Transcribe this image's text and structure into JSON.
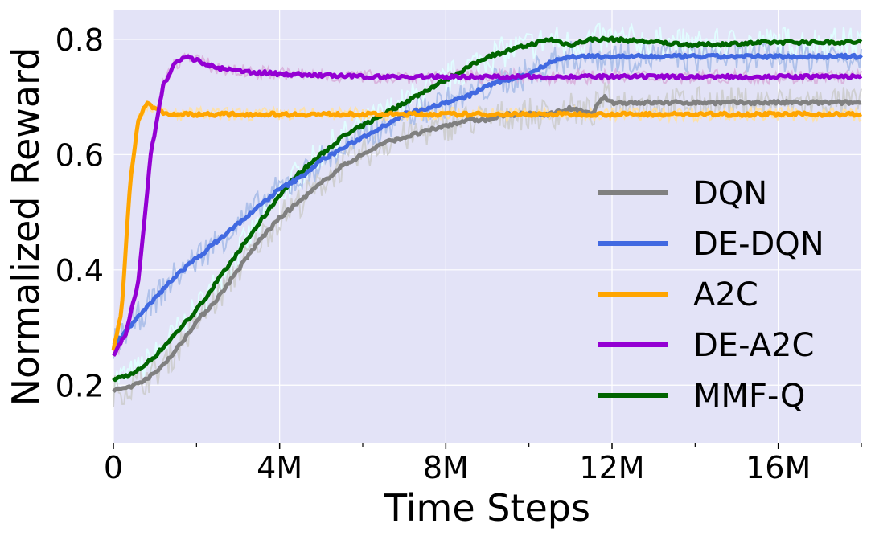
{
  "chart_data": {
    "type": "line",
    "xlabel": "Time Steps",
    "ylabel": "Normalized Reward",
    "xlim": [
      0,
      18000000
    ],
    "ylim": [
      0.1,
      0.85
    ],
    "xticks": [
      0,
      4000000,
      8000000,
      12000000,
      16000000
    ],
    "xtick_labels": [
      "0",
      "4M",
      "8M",
      "12M",
      "16M"
    ],
    "xminor_ticks": [
      2000000,
      6000000,
      10000000,
      14000000,
      18000000
    ],
    "yticks": [
      0.2,
      0.4,
      0.6,
      0.8
    ],
    "ytick_labels": [
      "0.2",
      "0.4",
      "0.6",
      "0.8"
    ],
    "grid": true,
    "background_color": "#e3e3f7",
    "legend_position": "lower-right",
    "series": [
      {
        "name": "DQN",
        "color": "#808080",
        "band_color": "#cccccc",
        "x": [
          0,
          500000,
          1000000,
          1500000,
          2000000,
          2500000,
          3000000,
          3500000,
          4000000,
          4500000,
          5000000,
          5500000,
          6000000,
          6500000,
          7000000,
          7500000,
          8000000,
          8500000,
          9000000,
          9500000,
          10000000,
          10500000,
          11000000,
          11500000,
          11800000,
          12000000,
          14000000,
          16000000,
          18000000
        ],
        "y": [
          0.19,
          0.2,
          0.22,
          0.26,
          0.31,
          0.35,
          0.4,
          0.45,
          0.49,
          0.52,
          0.55,
          0.58,
          0.6,
          0.62,
          0.63,
          0.64,
          0.65,
          0.66,
          0.66,
          0.67,
          0.67,
          0.67,
          0.68,
          0.67,
          0.7,
          0.69,
          0.69,
          0.69,
          0.69
        ]
      },
      {
        "name": "DE-DQN",
        "color": "#4169e1",
        "band_color": "#a8bce8",
        "x": [
          0,
          500000,
          1000000,
          1500000,
          2000000,
          2500000,
          3000000,
          3500000,
          4000000,
          4500000,
          5000000,
          5500000,
          6000000,
          6500000,
          7000000,
          7500000,
          8000000,
          8500000,
          9000000,
          9500000,
          10000000,
          10500000,
          11000000,
          11500000,
          12000000,
          14000000,
          16000000,
          18000000
        ],
        "y": [
          0.27,
          0.31,
          0.35,
          0.39,
          0.42,
          0.45,
          0.48,
          0.51,
          0.54,
          0.56,
          0.59,
          0.61,
          0.63,
          0.65,
          0.67,
          0.68,
          0.69,
          0.7,
          0.72,
          0.73,
          0.74,
          0.76,
          0.77,
          0.77,
          0.77,
          0.77,
          0.77,
          0.77
        ]
      },
      {
        "name": "A2C",
        "color": "#ffa500",
        "band_color": "#ffe0a0",
        "x": [
          0,
          200000,
          400000,
          600000,
          800000,
          1000000,
          1300000,
          2000000,
          4000000,
          6000000,
          8000000,
          10000000,
          12000000,
          14000000,
          16000000,
          18000000
        ],
        "y": [
          0.26,
          0.33,
          0.55,
          0.66,
          0.69,
          0.68,
          0.67,
          0.67,
          0.67,
          0.67,
          0.67,
          0.67,
          0.67,
          0.67,
          0.67,
          0.67
        ]
      },
      {
        "name": "DE-A2C",
        "color": "#9400d3",
        "band_color": "#d8b0dc",
        "x": [
          0,
          300000,
          600000,
          900000,
          1200000,
          1500000,
          1800000,
          2100000,
          2500000,
          3000000,
          4000000,
          6000000,
          8000000,
          10000000,
          12000000,
          14000000,
          16000000,
          18000000
        ],
        "y": [
          0.25,
          0.29,
          0.38,
          0.6,
          0.72,
          0.76,
          0.77,
          0.76,
          0.75,
          0.745,
          0.74,
          0.735,
          0.735,
          0.735,
          0.735,
          0.735,
          0.735,
          0.735
        ]
      },
      {
        "name": "MMF-Q",
        "color": "#006400",
        "band_color": "#e0ffff",
        "x": [
          0,
          500000,
          1000000,
          1500000,
          2000000,
          2500000,
          3000000,
          3500000,
          4000000,
          4500000,
          5000000,
          5500000,
          6000000,
          6500000,
          7000000,
          7500000,
          8000000,
          8500000,
          9000000,
          9500000,
          10000000,
          10500000,
          11000000,
          11500000,
          12000000,
          14000000,
          16000000,
          18000000
        ],
        "y": [
          0.21,
          0.22,
          0.25,
          0.29,
          0.33,
          0.38,
          0.43,
          0.48,
          0.53,
          0.57,
          0.6,
          0.63,
          0.65,
          0.67,
          0.69,
          0.71,
          0.73,
          0.75,
          0.77,
          0.78,
          0.79,
          0.8,
          0.79,
          0.8,
          0.8,
          0.79,
          0.795,
          0.795
        ]
      }
    ]
  }
}
